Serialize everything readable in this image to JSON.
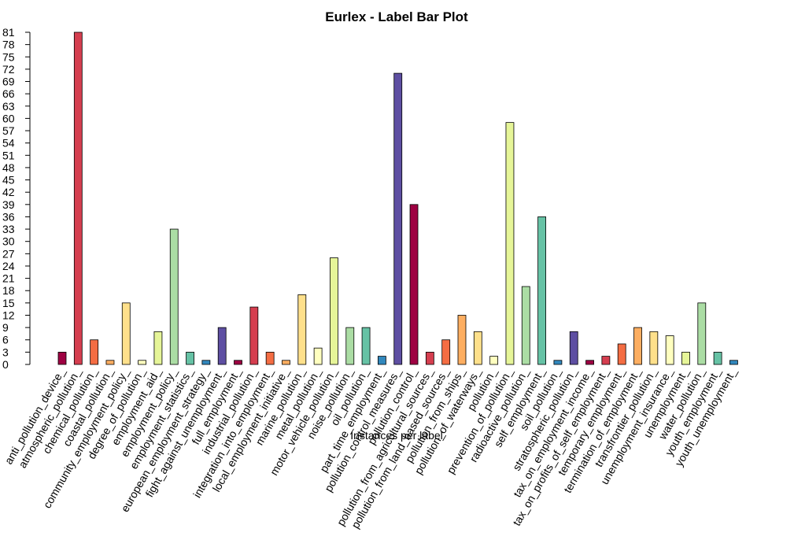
{
  "chart_data": {
    "type": "bar",
    "title": "Eurlex - Label Bar Plot",
    "xlabel": "Instances per label",
    "ylabel": "",
    "ylim": [
      0,
      81
    ],
    "yticks": [
      0,
      3,
      6,
      9,
      12,
      15,
      18,
      21,
      24,
      27,
      30,
      33,
      36,
      39,
      42,
      45,
      48,
      51,
      54,
      57,
      60,
      63,
      66,
      69,
      72,
      75,
      78,
      81
    ],
    "categories": [
      "anti_pollution_device_",
      "atmospheric_pollution_",
      "chemical_pollution_",
      "coastal_pollution_",
      "community_employment_policy_",
      "degree_of_pollution_",
      "employment_aid_",
      "employment_policy_",
      "employment_statistics_",
      "european_employment_strategy_",
      "fight_against_unemployment_",
      "full_employment_",
      "industrial_pollution_",
      "integration_into_employment_",
      "local_employment_initiative_",
      "marine_pollution_",
      "metal_pollution_",
      "motor_vehicle_pollution_",
      "noise_pollution_",
      "oil_pollution_",
      "part_time_employment_",
      "pollution_control_measures_",
      "pollution_control_",
      "pollution_from_agricultural_sources_",
      "pollution_from_land_based_sources_",
      "pollution_from_ships_",
      "pollution_of_waterways_",
      "pollution_",
      "prevention_of_pollution_",
      "radioactive_pollution_",
      "self_employment_",
      "soil_pollution_",
      "stratospheric_pollution_",
      "tax_on_employment_income_",
      "tax_on_profits_of_self_employment_",
      "temporary_employment_",
      "termination_of_employment_",
      "transfrontier_pollution_",
      "unemployment_insurance_",
      "unemployment_",
      "water_pollution_",
      "youth_employment_",
      "youth_unemployment_"
    ],
    "values": [
      3,
      81,
      6,
      1,
      15,
      1,
      8,
      33,
      3,
      1,
      9,
      1,
      14,
      3,
      1,
      17,
      4,
      26,
      9,
      9,
      2,
      71,
      39,
      3,
      6,
      12,
      8,
      2,
      59,
      19,
      36,
      1,
      8,
      1,
      2,
      5,
      9,
      8,
      7,
      3,
      15,
      3,
      1
    ],
    "colors": [
      "#9E0142",
      "#D53E4F",
      "#F46D43",
      "#FDAE61",
      "#FEE08B",
      "#FFFFBF",
      "#E6F598",
      "#ABDDA4",
      "#66C2A5",
      "#3288BD",
      "#5E4FA2"
    ]
  }
}
